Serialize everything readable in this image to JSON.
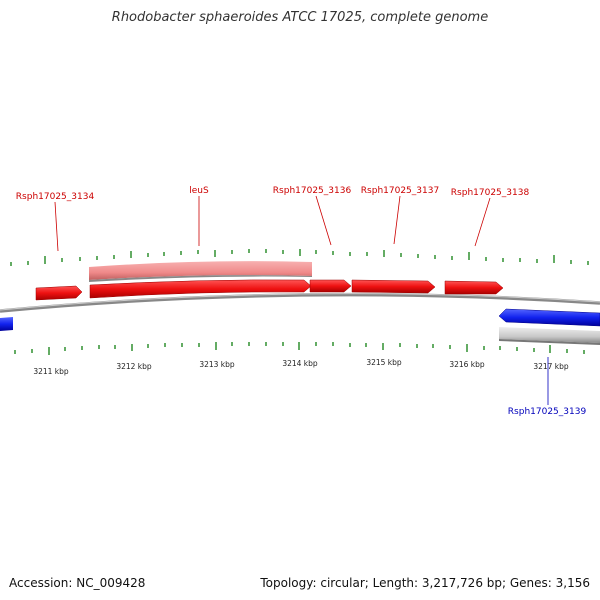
{
  "title": "Rhodobacter sphaeroides ATCC 17025, complete genome",
  "footer": {
    "accession": "Accession: NC_009428",
    "summary": "Topology: circular; Length: 3,217,726 bp; Genes: 3,156"
  },
  "colors": {
    "forward_gene": "#ee1111",
    "reverse_gene": "#1122ee",
    "forward_pseudo": "#f08a8a",
    "reverse_pseudo": "#c8c8c8",
    "backbone": "#888888",
    "tick": "#228822",
    "forward_label": "#cc0000",
    "reverse_label": "#0000bb"
  },
  "axis_labels": [
    "3211 kbp",
    "3212 kbp",
    "3213 kbp",
    "3214 kbp",
    "3215 kbp",
    "3216 kbp",
    "3217 kbp"
  ],
  "gene_labels": [
    {
      "text": "Rsph17025_3134",
      "strand": "forward"
    },
    {
      "text": "leuS",
      "strand": "forward"
    },
    {
      "text": "Rsph17025_3136",
      "strand": "forward"
    },
    {
      "text": "Rsph17025_3137",
      "strand": "forward"
    },
    {
      "text": "Rsph17025_3138",
      "strand": "forward"
    },
    {
      "text": "Rsph17025_3139",
      "strand": "reverse"
    }
  ]
}
